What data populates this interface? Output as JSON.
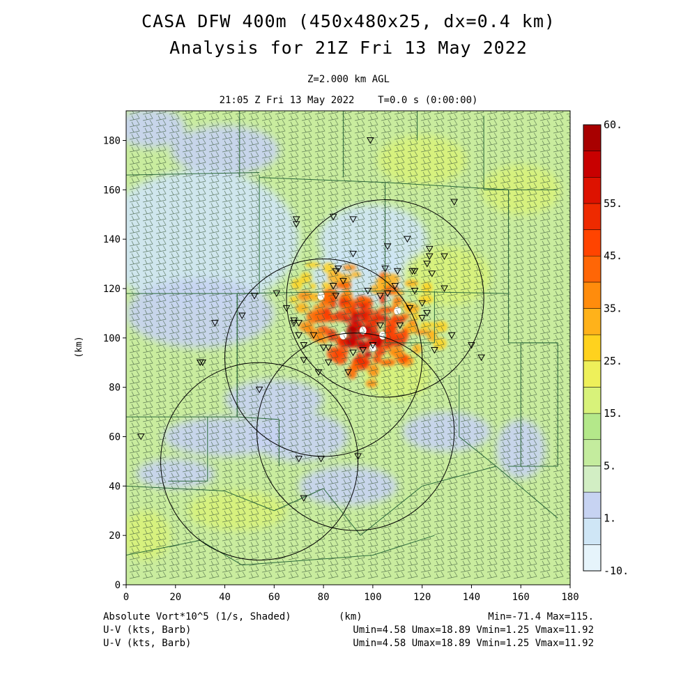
{
  "header": {
    "title_line1": "CASA DFW 400m (450x480x25, dx=0.4 km)",
    "title_line2": "Analysis for 21Z Fri 13 May 2022",
    "level": "Z=2.000 km AGL",
    "timestamp": "21:05 Z Fri 13 May 2022    T=0.0 s (0:00:00)"
  },
  "footer": {
    "left_line1": "Absolute Vort*10^5 (1/s, Shaded)",
    "left_line2": "U-V (kts, Barb)",
    "left_line3": "U-V (kts, Barb)",
    "xunit": "(km)",
    "right_line1": "Min=-71.4 Max=115.",
    "right_line2": "Umin=4.58 Umax=18.89 Vmin=1.25 Vmax=11.92",
    "right_line3": "Umin=4.58 Umax=18.89 Vmin=1.25 Vmax=11.92"
  },
  "chart_data": {
    "type": "heatmap",
    "field": "Absolute Vort*10^5 (1/s, Shaded)",
    "overlay": "U-V (kts, Barb)",
    "xlabel": "",
    "ylabel": "(km)",
    "xlim": [
      0,
      180
    ],
    "ylim": [
      0,
      192
    ],
    "xticks": [
      0,
      20,
      40,
      60,
      80,
      100,
      120,
      140,
      160,
      180
    ],
    "yticks": [
      0,
      20,
      40,
      60,
      80,
      100,
      120,
      140,
      160,
      180
    ],
    "color_levels": [
      "-10.",
      "1.",
      "5.",
      "15.",
      "25.",
      "35.",
      "45.",
      "55.",
      "60."
    ],
    "colorbar_bins": [
      {
        "color": "#e6f4fb"
      },
      {
        "color": "#cfe6f6"
      },
      {
        "color": "#c7d3f2"
      },
      {
        "color": "#d2eec4"
      },
      {
        "color": "#c4ec9e"
      },
      {
        "color": "#b4e88a"
      },
      {
        "color": "#d8f27a"
      },
      {
        "color": "#eef05a"
      },
      {
        "color": "#ffd21e"
      },
      {
        "color": "#ffb21a"
      },
      {
        "color": "#ff8c0c"
      },
      {
        "color": "#ff6606"
      },
      {
        "color": "#ff4400"
      },
      {
        "color": "#ee2a00"
      },
      {
        "color": "#dd1200"
      },
      {
        "color": "#c80000"
      },
      {
        "color": "#a80000"
      }
    ],
    "radar_range_rings": [
      {
        "center": [
          105,
          116
        ],
        "radius": 40
      },
      {
        "center": [
          80,
          92
        ],
        "radius": 40
      },
      {
        "center": [
          93,
          62
        ],
        "radius": 40
      },
      {
        "center": [
          54,
          50
        ],
        "radius": 40
      }
    ],
    "station_markers": [
      [
        99,
        180
      ],
      [
        133,
        155
      ],
      [
        69,
        148
      ],
      [
        69,
        146
      ],
      [
        92,
        148
      ],
      [
        84,
        149
      ],
      [
        92,
        134
      ],
      [
        106,
        137
      ],
      [
        114,
        140
      ],
      [
        123,
        136
      ],
      [
        123,
        133
      ],
      [
        129,
        133
      ],
      [
        122,
        130
      ],
      [
        117,
        127
      ],
      [
        124,
        126
      ],
      [
        116,
        127
      ],
      [
        110,
        127
      ],
      [
        109,
        121
      ],
      [
        105,
        128
      ],
      [
        86,
        128
      ],
      [
        85,
        127
      ],
      [
        88,
        123
      ],
      [
        84,
        121
      ],
      [
        85,
        117
      ],
      [
        98,
        119
      ],
      [
        103,
        117
      ],
      [
        106,
        118
      ],
      [
        115,
        112
      ],
      [
        117,
        119
      ],
      [
        120,
        114
      ],
      [
        122,
        110
      ],
      [
        129,
        120
      ],
      [
        65,
        112
      ],
      [
        68,
        107
      ],
      [
        68,
        106
      ],
      [
        70,
        106
      ],
      [
        61,
        118
      ],
      [
        52,
        117
      ],
      [
        47,
        109
      ],
      [
        36,
        106
      ],
      [
        31,
        90
      ],
      [
        30,
        90
      ],
      [
        70,
        101
      ],
      [
        72,
        97
      ],
      [
        80,
        96
      ],
      [
        82,
        96
      ],
      [
        76,
        101
      ],
      [
        92,
        94
      ],
      [
        96,
        95
      ],
      [
        100,
        97
      ],
      [
        103,
        105
      ],
      [
        111,
        105
      ],
      [
        120,
        108
      ],
      [
        125,
        95
      ],
      [
        132,
        101
      ],
      [
        140,
        97
      ],
      [
        144,
        92
      ],
      [
        82,
        90
      ],
      [
        72,
        91
      ],
      [
        90,
        86
      ],
      [
        78,
        86
      ],
      [
        54,
        79
      ],
      [
        6,
        60
      ],
      [
        70,
        51
      ],
      [
        79,
        51
      ],
      [
        94,
        52
      ],
      [
        72,
        35
      ]
    ]
  },
  "style": {
    "plot_background": "#c9ec9e",
    "line_color": "#2a6a3a"
  }
}
